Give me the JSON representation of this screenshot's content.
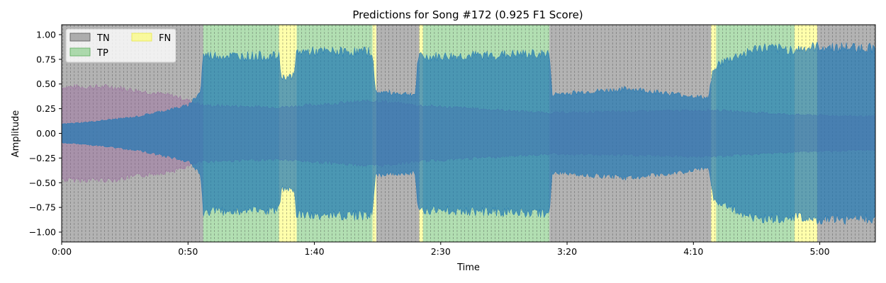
{
  "chart_data": {
    "type": "area",
    "title": "Predictions for Song #172 (0.925 F1 Score)",
    "xlabel": "Time",
    "ylabel": "Amplitude",
    "xlim": [
      0,
      322
    ],
    "ylim": [
      -1.1,
      1.1
    ],
    "x_ticks": [
      {
        "value": 0,
        "label": "0:00"
      },
      {
        "value": 50,
        "label": "0:50"
      },
      {
        "value": 100,
        "label": "1:40"
      },
      {
        "value": 150,
        "label": "2:30"
      },
      {
        "value": 200,
        "label": "3:20"
      },
      {
        "value": 250,
        "label": "4:10"
      },
      {
        "value": 300,
        "label": "5:00"
      }
    ],
    "y_ticks": [
      {
        "value": 1.0,
        "label": "1.00"
      },
      {
        "value": 0.75,
        "label": "0.75"
      },
      {
        "value": 0.5,
        "label": "0.50"
      },
      {
        "value": 0.25,
        "label": "0.25"
      },
      {
        "value": 0.0,
        "label": "0.00"
      },
      {
        "value": -0.25,
        "label": "−0.25"
      },
      {
        "value": -0.5,
        "label": "−0.50"
      },
      {
        "value": -0.75,
        "label": "−0.75"
      },
      {
        "value": -1.0,
        "label": "−1.00"
      }
    ],
    "legend": {
      "placement": "top-left",
      "entries": [
        {
          "name": "TN",
          "color": "#808080"
        },
        {
          "name": "TP",
          "color": "#7fc97f"
        },
        {
          "name": "FN",
          "color": "#ffff66"
        }
      ]
    },
    "segments": [
      {
        "start": 0,
        "end": 56,
        "label": "TN"
      },
      {
        "start": 56,
        "end": 86,
        "label": "TP"
      },
      {
        "start": 86,
        "end": 93,
        "label": "FN"
      },
      {
        "start": 93,
        "end": 123,
        "label": "TP"
      },
      {
        "start": 123,
        "end": 124.5,
        "label": "FN"
      },
      {
        "start": 124.5,
        "end": 141.5,
        "label": "TN"
      },
      {
        "start": 141.5,
        "end": 143,
        "label": "FN"
      },
      {
        "start": 143,
        "end": 193,
        "label": "TP"
      },
      {
        "start": 193,
        "end": 257,
        "label": "TN"
      },
      {
        "start": 257,
        "end": 259,
        "label": "FN"
      },
      {
        "start": 259,
        "end": 290,
        "label": "TP"
      },
      {
        "start": 290,
        "end": 299,
        "label": "FN"
      },
      {
        "start": 299,
        "end": 322,
        "label": "TN"
      }
    ],
    "series": [
      {
        "color": "#1f77b4",
        "envelope": [
          {
            "x": 0,
            "amp": 0.1
          },
          {
            "x": 10,
            "amp": 0.12
          },
          {
            "x": 30,
            "amp": 0.18
          },
          {
            "x": 50,
            "amp": 0.3
          },
          {
            "x": 55,
            "amp": 0.45
          },
          {
            "x": 56,
            "amp": 0.84
          },
          {
            "x": 86,
            "amp": 0.83
          },
          {
            "x": 87,
            "amp": 0.6
          },
          {
            "x": 92,
            "amp": 0.62
          },
          {
            "x": 93,
            "amp": 0.88
          },
          {
            "x": 123,
            "amp": 0.88
          },
          {
            "x": 124,
            "amp": 0.45
          },
          {
            "x": 140,
            "amp": 0.42
          },
          {
            "x": 141,
            "amp": 0.82
          },
          {
            "x": 193,
            "amp": 0.86
          },
          {
            "x": 194,
            "amp": 0.42
          },
          {
            "x": 225,
            "amp": 0.48
          },
          {
            "x": 256,
            "amp": 0.38
          },
          {
            "x": 258,
            "amp": 0.72
          },
          {
            "x": 266,
            "amp": 0.82
          },
          {
            "x": 276,
            "amp": 0.92
          },
          {
            "x": 290,
            "amp": 0.9
          },
          {
            "x": 299,
            "amp": 0.93
          },
          {
            "x": 322,
            "amp": 0.92
          }
        ]
      },
      {
        "color": "#9b6ba0",
        "envelope": [
          {
            "x": 0,
            "amp": 0.5
          },
          {
            "x": 20,
            "amp": 0.5
          },
          {
            "x": 45,
            "amp": 0.4
          },
          {
            "x": 56,
            "amp": 0.3
          },
          {
            "x": 86,
            "amp": 0.28
          },
          {
            "x": 124,
            "amp": 0.35
          },
          {
            "x": 141,
            "amp": 0.3
          },
          {
            "x": 193,
            "amp": 0.22
          },
          {
            "x": 257,
            "amp": 0.25
          },
          {
            "x": 290,
            "amp": 0.2
          },
          {
            "x": 322,
            "amp": 0.18
          }
        ]
      }
    ]
  }
}
